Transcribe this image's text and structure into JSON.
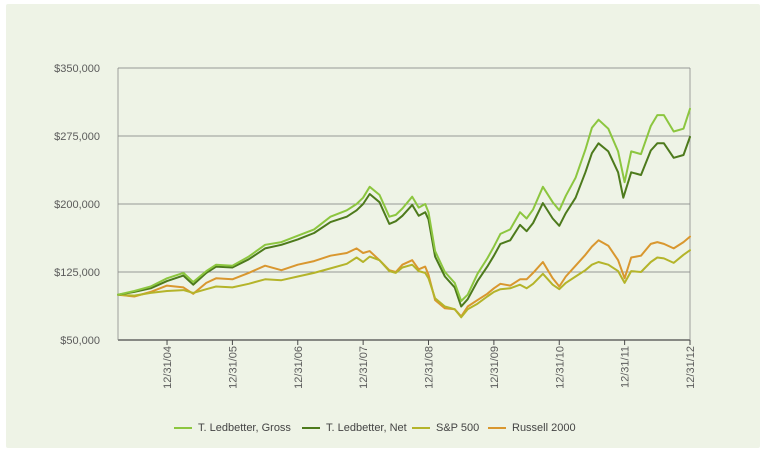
{
  "chart_data": {
    "type": "line",
    "title": "",
    "xlabel": "",
    "ylabel": "",
    "ylim": [
      50000,
      350000
    ],
    "y_ticks": [
      "$50,000",
      "$125,000",
      "$200,000",
      "$275,000",
      "$350,000"
    ],
    "y_tick_values": [
      50000,
      125000,
      200000,
      275000,
      350000
    ],
    "x_ticks": [
      "12/31/04",
      "12/31/05",
      "12/31/06",
      "12/31/07",
      "12/31/08",
      "12/31/09",
      "12/31/10",
      "12/31/11",
      "12/31/12"
    ],
    "x_tick_values": [
      2004.0,
      2005.0,
      2006.0,
      2007.0,
      2008.0,
      2009.0,
      2010.0,
      2011.0,
      2012.0
    ],
    "xlim": [
      2003.25,
      2012.0
    ],
    "grid": "horizontal",
    "legend_position": "bottom",
    "series": [
      {
        "name": "T. Ledbetter, Gross",
        "color": "#8cc63f",
        "points": [
          [
            2003.25,
            100000
          ],
          [
            2003.5,
            104000
          ],
          [
            2003.75,
            109000
          ],
          [
            2004.0,
            118000
          ],
          [
            2004.25,
            124000
          ],
          [
            2004.4,
            114000
          ],
          [
            2004.6,
            126000
          ],
          [
            2004.75,
            133000
          ],
          [
            2005.0,
            132000
          ],
          [
            2005.25,
            142000
          ],
          [
            2005.5,
            155000
          ],
          [
            2005.75,
            158000
          ],
          [
            2006.0,
            165000
          ],
          [
            2006.25,
            172000
          ],
          [
            2006.5,
            186000
          ],
          [
            2006.75,
            193000
          ],
          [
            2006.9,
            200000
          ],
          [
            2007.0,
            207000
          ],
          [
            2007.1,
            219000
          ],
          [
            2007.25,
            210000
          ],
          [
            2007.4,
            186000
          ],
          [
            2007.5,
            188000
          ],
          [
            2007.6,
            195000
          ],
          [
            2007.75,
            208000
          ],
          [
            2007.85,
            196000
          ],
          [
            2007.95,
            200000
          ],
          [
            2008.0,
            191000
          ],
          [
            2008.1,
            148000
          ],
          [
            2008.25,
            125000
          ],
          [
            2008.4,
            113000
          ],
          [
            2008.5,
            93000
          ],
          [
            2008.6,
            100000
          ],
          [
            2008.75,
            123000
          ],
          [
            2008.9,
            140000
          ],
          [
            2009.0,
            153000
          ],
          [
            2009.1,
            167000
          ],
          [
            2009.25,
            172000
          ],
          [
            2009.4,
            191000
          ],
          [
            2009.5,
            184000
          ],
          [
            2009.6,
            194000
          ],
          [
            2009.75,
            219000
          ],
          [
            2009.9,
            202000
          ],
          [
            2010.0,
            193000
          ],
          [
            2010.1,
            209000
          ],
          [
            2010.25,
            229000
          ],
          [
            2010.4,
            260000
          ],
          [
            2010.5,
            284000
          ],
          [
            2010.6,
            293000
          ],
          [
            2010.75,
            283000
          ],
          [
            2010.9,
            258000
          ],
          [
            2011.0,
            224000
          ],
          [
            2011.1,
            258000
          ],
          [
            2011.25,
            255000
          ],
          [
            2011.4,
            286000
          ],
          [
            2011.5,
            298000
          ],
          [
            2011.6,
            298000
          ],
          [
            2011.75,
            280000
          ],
          [
            2011.9,
            283000
          ],
          [
            2012.0,
            305000
          ]
        ]
      },
      {
        "name": "T. Ledbetter, Net",
        "color": "#4d7a1c",
        "points": [
          [
            2003.25,
            100000
          ],
          [
            2003.5,
            103000
          ],
          [
            2003.75,
            107000
          ],
          [
            2004.0,
            115000
          ],
          [
            2004.25,
            121000
          ],
          [
            2004.4,
            111000
          ],
          [
            2004.6,
            124000
          ],
          [
            2004.75,
            131000
          ],
          [
            2005.0,
            130000
          ],
          [
            2005.25,
            139000
          ],
          [
            2005.5,
            151000
          ],
          [
            2005.75,
            155000
          ],
          [
            2006.0,
            161000
          ],
          [
            2006.25,
            168000
          ],
          [
            2006.5,
            180000
          ],
          [
            2006.75,
            186000
          ],
          [
            2006.9,
            193000
          ],
          [
            2007.0,
            200000
          ],
          [
            2007.1,
            211000
          ],
          [
            2007.25,
            202000
          ],
          [
            2007.4,
            178000
          ],
          [
            2007.5,
            181000
          ],
          [
            2007.6,
            187000
          ],
          [
            2007.75,
            199000
          ],
          [
            2007.85,
            187000
          ],
          [
            2007.95,
            191000
          ],
          [
            2008.0,
            183000
          ],
          [
            2008.1,
            142000
          ],
          [
            2008.25,
            120000
          ],
          [
            2008.4,
            108000
          ],
          [
            2008.5,
            87000
          ],
          [
            2008.6,
            95000
          ],
          [
            2008.75,
            115000
          ],
          [
            2008.9,
            131000
          ],
          [
            2009.0,
            143000
          ],
          [
            2009.1,
            156000
          ],
          [
            2009.25,
            160000
          ],
          [
            2009.4,
            177000
          ],
          [
            2009.5,
            170000
          ],
          [
            2009.6,
            179000
          ],
          [
            2009.75,
            201000
          ],
          [
            2009.9,
            184000
          ],
          [
            2010.0,
            176000
          ],
          [
            2010.1,
            190000
          ],
          [
            2010.25,
            207000
          ],
          [
            2010.4,
            235000
          ],
          [
            2010.5,
            256000
          ],
          [
            2010.6,
            267000
          ],
          [
            2010.75,
            258000
          ],
          [
            2010.9,
            235000
          ],
          [
            2010.98,
            207000
          ],
          [
            2011.1,
            235000
          ],
          [
            2011.25,
            232000
          ],
          [
            2011.4,
            259000
          ],
          [
            2011.5,
            267000
          ],
          [
            2011.6,
            267000
          ],
          [
            2011.75,
            251000
          ],
          [
            2011.9,
            254000
          ],
          [
            2012.0,
            274000
          ]
        ]
      },
      {
        "name": "S&P 500",
        "color": "#b4b42a",
        "points": [
          [
            2003.25,
            100000
          ],
          [
            2003.5,
            99000
          ],
          [
            2003.75,
            102000
          ],
          [
            2004.0,
            104000
          ],
          [
            2004.25,
            105000
          ],
          [
            2004.4,
            102000
          ],
          [
            2004.6,
            106000
          ],
          [
            2004.75,
            109000
          ],
          [
            2005.0,
            108000
          ],
          [
            2005.25,
            112000
          ],
          [
            2005.5,
            117000
          ],
          [
            2005.75,
            116000
          ],
          [
            2006.0,
            120000
          ],
          [
            2006.25,
            124000
          ],
          [
            2006.5,
            129000
          ],
          [
            2006.75,
            134000
          ],
          [
            2006.9,
            141000
          ],
          [
            2007.0,
            136000
          ],
          [
            2007.1,
            142000
          ],
          [
            2007.25,
            138000
          ],
          [
            2007.4,
            126000
          ],
          [
            2007.5,
            124000
          ],
          [
            2007.6,
            130000
          ],
          [
            2007.75,
            133000
          ],
          [
            2007.85,
            126000
          ],
          [
            2007.95,
            124000
          ],
          [
            2008.0,
            118000
          ],
          [
            2008.1,
            96000
          ],
          [
            2008.25,
            87000
          ],
          [
            2008.4,
            84000
          ],
          [
            2008.5,
            75000
          ],
          [
            2008.6,
            84000
          ],
          [
            2008.75,
            90000
          ],
          [
            2008.9,
            98000
          ],
          [
            2009.0,
            103000
          ],
          [
            2009.1,
            106000
          ],
          [
            2009.25,
            107000
          ],
          [
            2009.4,
            111000
          ],
          [
            2009.5,
            107000
          ],
          [
            2009.6,
            112000
          ],
          [
            2009.75,
            123000
          ],
          [
            2009.9,
            111000
          ],
          [
            2010.0,
            106000
          ],
          [
            2010.1,
            113000
          ],
          [
            2010.25,
            120000
          ],
          [
            2010.4,
            127000
          ],
          [
            2010.5,
            133000
          ],
          [
            2010.6,
            136000
          ],
          [
            2010.75,
            133000
          ],
          [
            2010.9,
            126000
          ],
          [
            2011.0,
            113000
          ],
          [
            2011.1,
            126000
          ],
          [
            2011.25,
            125000
          ],
          [
            2011.4,
            136000
          ],
          [
            2011.5,
            141000
          ],
          [
            2011.6,
            140000
          ],
          [
            2011.75,
            135000
          ],
          [
            2011.9,
            144000
          ],
          [
            2012.0,
            149000
          ]
        ]
      },
      {
        "name": "Russell 2000",
        "color": "#d9972f",
        "points": [
          [
            2003.25,
            100000
          ],
          [
            2003.5,
            98000
          ],
          [
            2003.75,
            103000
          ],
          [
            2004.0,
            110000
          ],
          [
            2004.25,
            108000
          ],
          [
            2004.4,
            101000
          ],
          [
            2004.6,
            113000
          ],
          [
            2004.75,
            118000
          ],
          [
            2005.0,
            117000
          ],
          [
            2005.25,
            124000
          ],
          [
            2005.5,
            132000
          ],
          [
            2005.75,
            127000
          ],
          [
            2006.0,
            133000
          ],
          [
            2006.25,
            137000
          ],
          [
            2006.5,
            143000
          ],
          [
            2006.75,
            146000
          ],
          [
            2006.9,
            151000
          ],
          [
            2007.0,
            146000
          ],
          [
            2007.1,
            148000
          ],
          [
            2007.25,
            138000
          ],
          [
            2007.4,
            127000
          ],
          [
            2007.5,
            125000
          ],
          [
            2007.6,
            133000
          ],
          [
            2007.75,
            138000
          ],
          [
            2007.85,
            128000
          ],
          [
            2007.95,
            131000
          ],
          [
            2008.0,
            122000
          ],
          [
            2008.1,
            94000
          ],
          [
            2008.25,
            85000
          ],
          [
            2008.4,
            84000
          ],
          [
            2008.5,
            76000
          ],
          [
            2008.6,
            87000
          ],
          [
            2008.75,
            94000
          ],
          [
            2008.9,
            101000
          ],
          [
            2009.0,
            107000
          ],
          [
            2009.1,
            112000
          ],
          [
            2009.25,
            110000
          ],
          [
            2009.4,
            117000
          ],
          [
            2009.5,
            117000
          ],
          [
            2009.6,
            124000
          ],
          [
            2009.75,
            136000
          ],
          [
            2009.9,
            118000
          ],
          [
            2010.0,
            109000
          ],
          [
            2010.1,
            120000
          ],
          [
            2010.25,
            132000
          ],
          [
            2010.4,
            144000
          ],
          [
            2010.5,
            153000
          ],
          [
            2010.6,
            160000
          ],
          [
            2010.75,
            154000
          ],
          [
            2010.9,
            138000
          ],
          [
            2011.0,
            118000
          ],
          [
            2011.1,
            141000
          ],
          [
            2011.25,
            143000
          ],
          [
            2011.4,
            156000
          ],
          [
            2011.5,
            158000
          ],
          [
            2011.6,
            156000
          ],
          [
            2011.75,
            151000
          ],
          [
            2011.9,
            158000
          ],
          [
            2012.0,
            164000
          ]
        ]
      }
    ]
  }
}
